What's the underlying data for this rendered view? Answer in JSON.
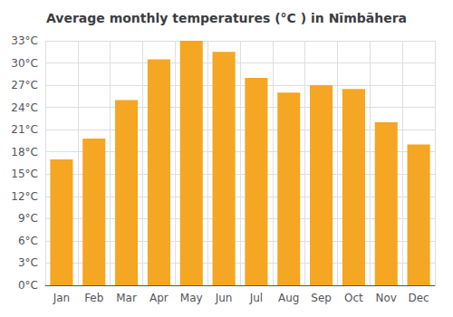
{
  "chart_data": {
    "type": "bar",
    "title": "Average monthly temperatures (°C ) in Nīmbāhera",
    "categories": [
      "Jan",
      "Feb",
      "Mar",
      "Apr",
      "May",
      "Jun",
      "Jul",
      "Aug",
      "Sep",
      "Oct",
      "Nov",
      "Dec"
    ],
    "values": [
      17.0,
      19.8,
      25.0,
      30.5,
      33.0,
      31.5,
      28.0,
      26.0,
      27.0,
      26.5,
      22.0,
      19.0
    ],
    "color": "#F5A623",
    "ylim": [
      0,
      33
    ],
    "yticks": [
      {
        "value": 0,
        "label": "0°C"
      },
      {
        "value": 3,
        "label": "3°C"
      },
      {
        "value": 6,
        "label": "6°C"
      },
      {
        "value": 9,
        "label": "9°C"
      },
      {
        "value": 12,
        "label": "12°C"
      },
      {
        "value": 15,
        "label": "15°C"
      },
      {
        "value": 18,
        "label": "18°C"
      },
      {
        "value": 21,
        "label": "21°C"
      },
      {
        "value": 24,
        "label": "24°C"
      },
      {
        "value": 27,
        "label": "27°C"
      },
      {
        "value": 30,
        "label": "30°C"
      },
      {
        "value": 33,
        "label": "33°C"
      }
    ],
    "grid": true
  }
}
